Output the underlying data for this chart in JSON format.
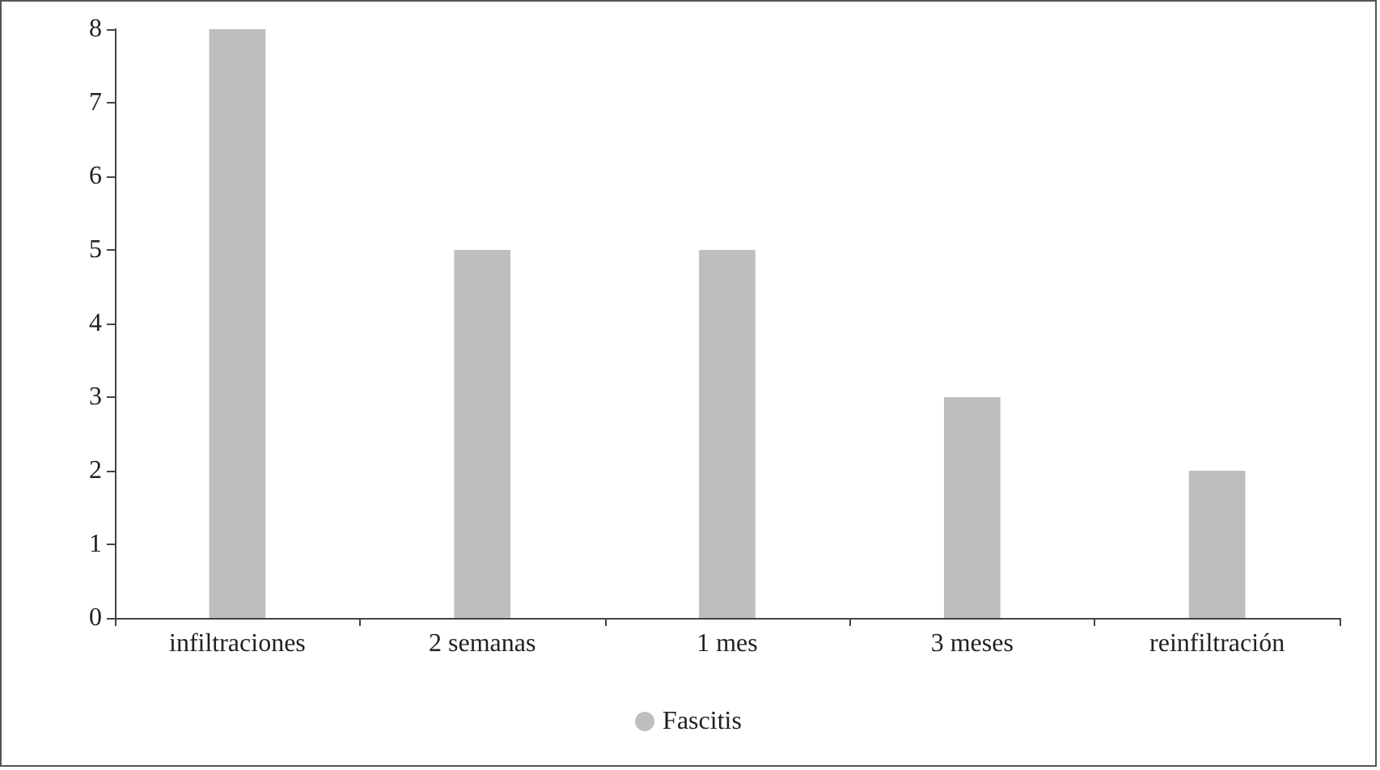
{
  "chart_data": {
    "type": "bar",
    "categories": [
      "infiltraciones",
      "2 semanas",
      "1 mes",
      "3 meses",
      "reinfiltración"
    ],
    "series": [
      {
        "name": "Fascitis",
        "color": "#bebec0",
        "values": [
          8,
          5,
          5,
          3,
          2
        ]
      }
    ],
    "ylim": [
      0,
      8
    ],
    "yticks": [
      0,
      1,
      2,
      3,
      4,
      5,
      6,
      7,
      8
    ],
    "grid": false,
    "legend": "bottom",
    "marker": "circle"
  }
}
